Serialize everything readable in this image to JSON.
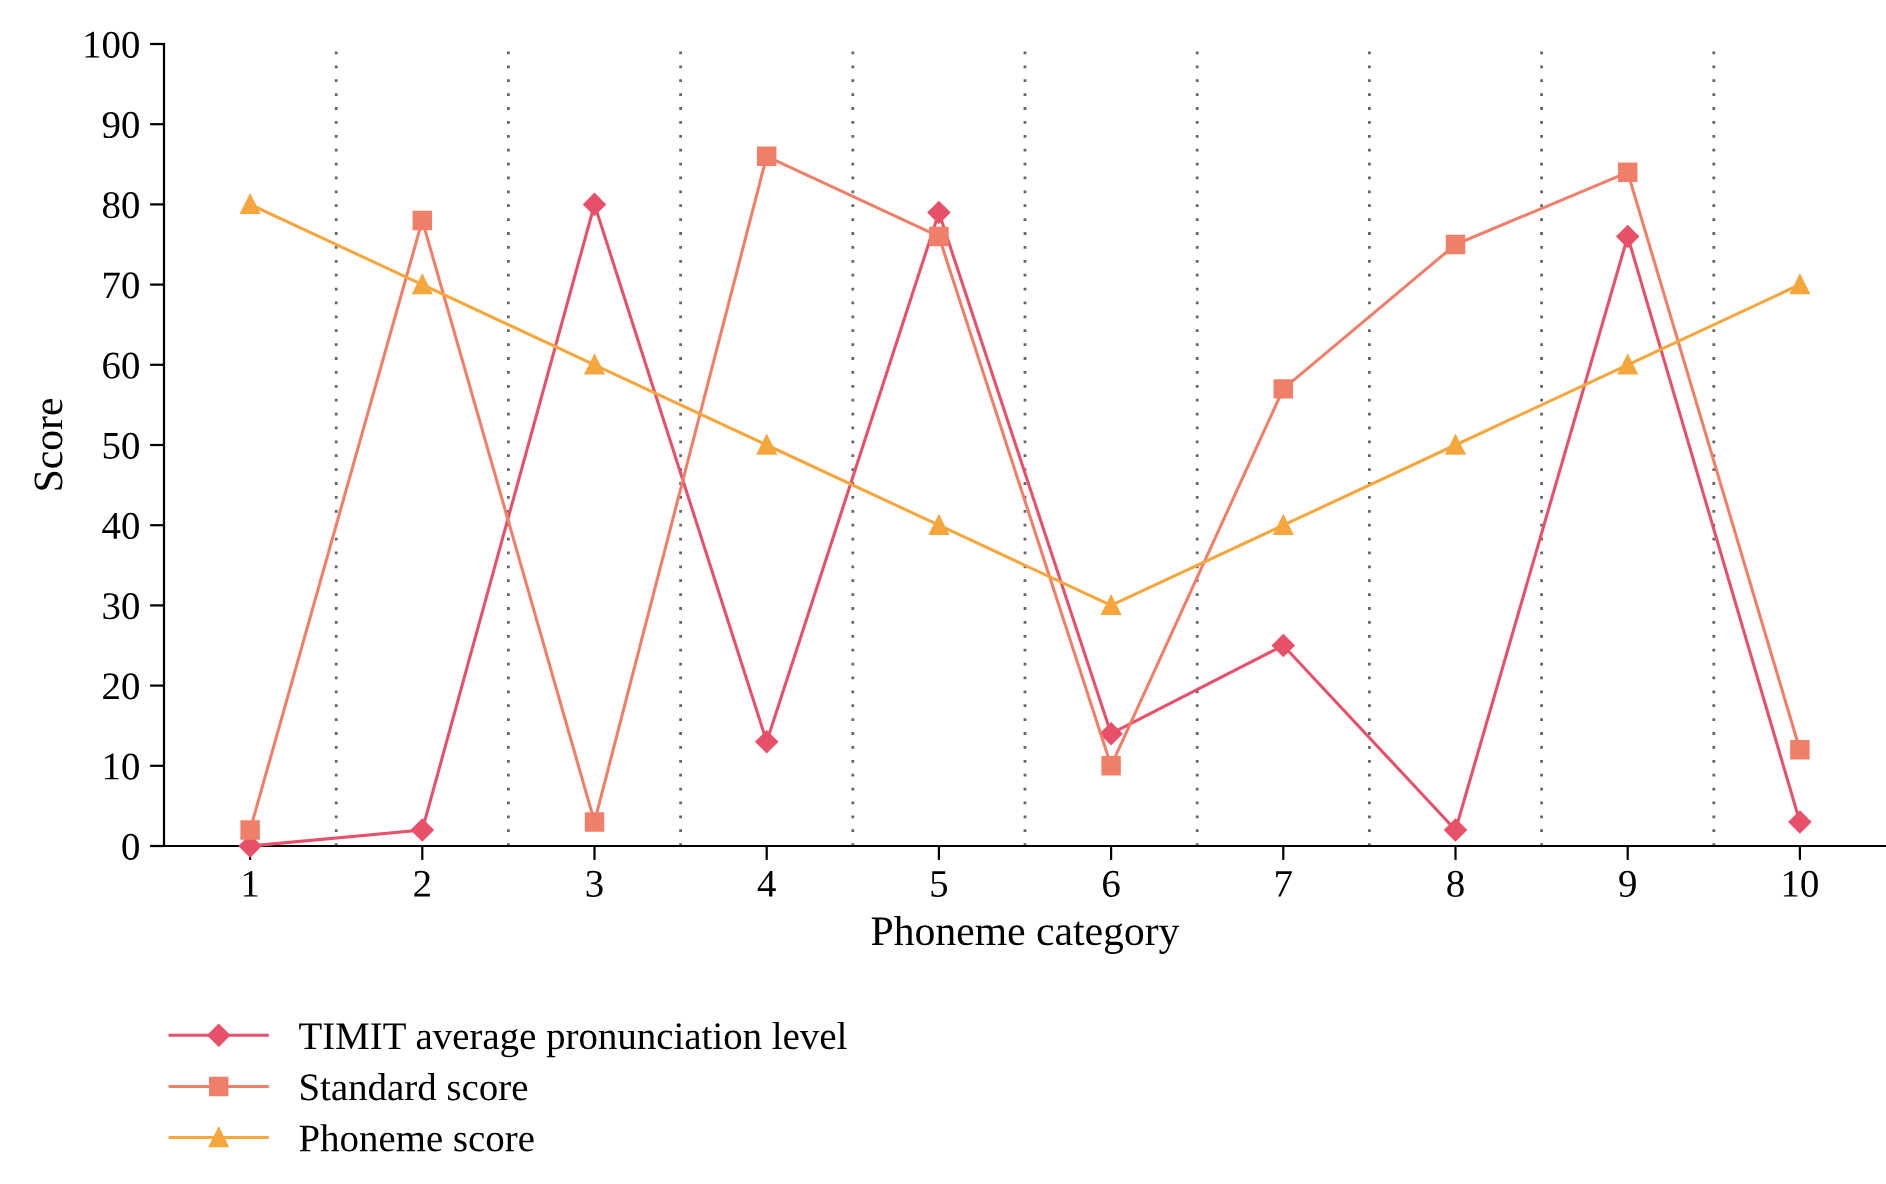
{
  "chart_data": {
    "type": "line",
    "xlabel": "Phoneme category",
    "ylabel": "Score",
    "categories": [
      "1",
      "2",
      "3",
      "4",
      "5",
      "6",
      "7",
      "8",
      "9",
      "10"
    ],
    "series": [
      {
        "name": "TIMIT average pronunciation level",
        "color": "#e8506a",
        "marker": "diamond",
        "values": [
          0,
          2,
          80,
          13,
          79,
          14,
          25,
          2,
          76,
          3
        ]
      },
      {
        "name": "Standard score",
        "color": "#f07f6a",
        "marker": "square",
        "values": [
          2,
          78,
          3,
          86,
          76,
          10,
          57,
          75,
          84,
          12
        ]
      },
      {
        "name": "Phoneme score",
        "color": "#f5a63c",
        "marker": "triangle",
        "values": [
          80,
          70,
          60,
          50,
          40,
          30,
          40,
          50,
          60,
          70
        ]
      }
    ],
    "ylim": [
      0,
      100
    ],
    "yticks": [
      0,
      10,
      20,
      30,
      40,
      50,
      60,
      70,
      80,
      90,
      100
    ],
    "grid": "x",
    "legend": "bottom left",
    "line_style": "solid"
  }
}
